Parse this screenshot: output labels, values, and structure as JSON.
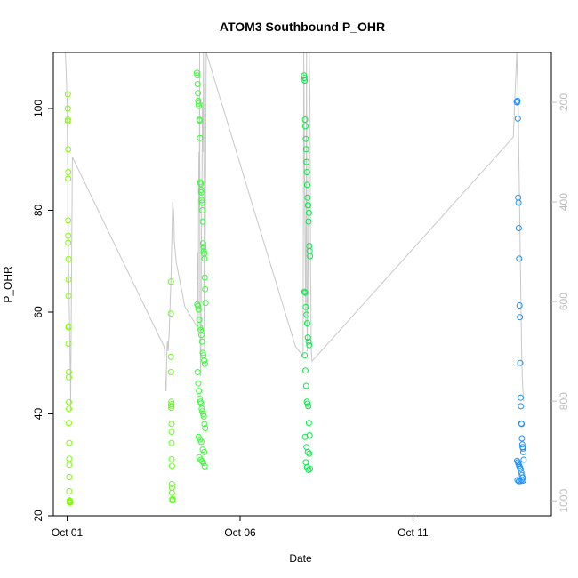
{
  "chart_data": {
    "type": "scatter",
    "title": "ATOM3 Southbound P_OHR",
    "xlabel": "Date",
    "ylabel": "P_OHR",
    "x_ticks": [
      "Oct 01",
      "Oct 06",
      "Oct 11"
    ],
    "x_tick_values": [
      1,
      6,
      11
    ],
    "xlim": [
      0.6,
      15.0
    ],
    "y_ticks": [
      20,
      40,
      60,
      80,
      100
    ],
    "ylim": [
      20,
      111
    ],
    "y2_ticks": [
      200,
      400,
      600,
      800,
      1000
    ],
    "y2lim": [
      1030,
      100
    ],
    "y2_reversed": true,
    "grid": false,
    "colors": {
      "axis": "#000000",
      "secondary_axis": "#bdbdbd",
      "secondary_line": "#c8c8c8",
      "series_ramp": [
        "#7fff00",
        "#66ff22",
        "#33ff33",
        "#00ee44",
        "#00e676",
        "#1e90ff"
      ]
    },
    "series": [
      {
        "color": "#7fff00",
        "x": [
          1.02,
          1.02,
          1.02,
          1.02,
          1.03,
          1.03,
          1.03,
          1.03,
          1.03,
          1.03,
          1.04,
          1.04,
          1.04,
          1.04,
          1.04,
          1.04,
          1.05,
          1.05,
          1.05,
          1.05,
          1.05,
          1.06,
          1.06,
          1.06,
          1.06,
          1.06,
          1.07,
          1.07,
          1.08,
          1.08,
          1.08,
          1.08,
          1.09,
          1.09
        ],
        "y": [
          102.8,
          100.0,
          97.8,
          97.5,
          92.0,
          87.5,
          86.2,
          78.0,
          75.0,
          73.6,
          70.4,
          66.4,
          63.2,
          57.2,
          57.0,
          53.8,
          48.2,
          47.2,
          42.3,
          41.0,
          38.2,
          34.3,
          31.2,
          30.0,
          27.6,
          24.8,
          23.0,
          22.6,
          22.6,
          22.9,
          22.7,
          22.8,
          22.6,
          22.7
        ]
      },
      {
        "color": "#66ff22",
        "x": [
          4.0,
          4.0,
          4.0,
          4.0,
          4.01,
          4.01,
          4.01,
          4.01,
          4.02,
          4.02,
          4.02,
          4.02,
          4.03,
          4.03,
          4.03,
          4.03,
          4.04,
          4.04,
          4.04,
          4.04,
          4.05,
          4.05,
          4.05
        ],
        "y": [
          66.0,
          59.7,
          51.2,
          48.2,
          42.4,
          41.9,
          41.6,
          41.2,
          38.0,
          36.5,
          34.3,
          31.1,
          29.8,
          26.2,
          25.5,
          24.5,
          23.2,
          23.0,
          23.2,
          23.0,
          23.3,
          23.1,
          23.2
        ]
      },
      {
        "color": "#33ff33",
        "x": [
          4.75,
          4.76,
          4.77,
          4.78,
          4.79,
          4.8,
          4.81,
          4.82,
          4.83,
          4.84,
          4.85,
          4.86,
          4.87,
          4.88,
          4.89,
          4.9,
          4.91,
          4.92,
          4.93,
          4.94,
          4.95,
          4.96,
          4.97,
          4.98,
          4.99,
          5.0,
          4.76,
          4.78,
          4.8,
          4.82,
          4.84,
          4.86,
          4.88,
          4.9,
          4.92,
          4.94,
          4.96,
          4.98,
          4.77,
          4.79,
          4.81,
          4.83,
          4.85,
          4.87,
          4.89,
          4.91,
          4.93,
          4.95,
          4.97,
          4.99,
          4.8,
          4.84,
          4.88,
          4.92,
          4.96,
          4.82,
          4.86,
          4.9,
          4.94,
          4.98
        ],
        "y": [
          107.0,
          106.5,
          104.8,
          103.0,
          101.5,
          101.0,
          100.5,
          97.8,
          97.6,
          94.2,
          85.5,
          85.2,
          84.0,
          83.5,
          82.0,
          81.5,
          80.0,
          77.8,
          73.5,
          72.8,
          72.0,
          71.5,
          70.5,
          66.8,
          64.5,
          61.8,
          61.5,
          61.2,
          60.5,
          58.5,
          57.0,
          56.5,
          55.5,
          54.2,
          52.0,
          51.5,
          50.5,
          49.8,
          48.2,
          46.0,
          44.5,
          43.0,
          42.4,
          42.0,
          41.0,
          40.5,
          40.0,
          39.5,
          38.0,
          37.2,
          35.5,
          35.0,
          34.5,
          33.0,
          32.5,
          31.5,
          31.0,
          30.7,
          30.4,
          29.7
        ]
      },
      {
        "color": "#00ee44",
        "x": [
          7.85,
          7.86,
          7.87,
          7.88,
          7.89,
          7.9,
          7.91,
          7.92,
          7.93,
          7.94,
          7.95,
          7.96,
          7.97,
          7.98,
          7.99,
          8.0,
          8.01,
          8.02,
          7.86,
          7.88,
          7.9,
          7.92,
          7.94,
          7.96,
          7.98,
          8.0,
          7.87,
          7.89,
          7.91,
          7.93,
          7.95,
          7.97,
          7.99,
          8.01,
          7.88,
          7.92,
          7.96,
          8.0,
          7.9,
          7.94,
          7.98,
          8.02
        ],
        "y": [
          106.5,
          106.0,
          105.5,
          97.8,
          96.5,
          94.0,
          92.0,
          89.5,
          87.5,
          85.0,
          82.5,
          81.0,
          81.0,
          77.8,
          79.5,
          73.0,
          72.0,
          71.0,
          64.0,
          63.8,
          61.0,
          59.5,
          57.8,
          55.0,
          54.2,
          53.5,
          51.5,
          48.5,
          45.5,
          42.4,
          42.0,
          41.5,
          38.2,
          35.8,
          35.5,
          33.5,
          32.5,
          32.2,
          30.5,
          29.5,
          29.0,
          29.2
        ]
      },
      {
        "color": "#1e90ff",
        "x": [
          14.0,
          14.01,
          14.02,
          14.03,
          14.04,
          14.05,
          14.06,
          14.07,
          14.08,
          14.09,
          14.1,
          14.11,
          14.12,
          14.13,
          14.14,
          14.15,
          14.16,
          14.17,
          14.18,
          14.19,
          14.2,
          14.01,
          14.03,
          14.05,
          14.07,
          14.09,
          14.11,
          14.13,
          14.15,
          14.17,
          14.02,
          14.06,
          14.1,
          14.14,
          14.18
        ],
        "y": [
          101.3,
          101.2,
          101.5,
          98.0,
          82.5,
          81.5,
          76.5,
          70.5,
          61.3,
          59.0,
          50.0,
          43.2,
          41.5,
          38.1,
          38.0,
          35.2,
          34.0,
          33.5,
          33.2,
          32.5,
          31.0,
          30.8,
          30.5,
          30.2,
          29.8,
          29.5,
          29.2,
          28.5,
          28.0,
          27.5,
          27.0,
          26.8,
          26.8,
          27.0,
          26.9
        ]
      }
    ],
    "secondary_line": {
      "axis": "right",
      "x": [
        0.95,
        0.96,
        0.97,
        1.0,
        1.0,
        1.02,
        1.02,
        1.04,
        1.06,
        1.08,
        1.1,
        1.1,
        1.15,
        3.8,
        3.82,
        3.84,
        3.86,
        3.88,
        3.9,
        3.92,
        3.95,
        4.0,
        4.05,
        4.08,
        4.1,
        4.15,
        4.4,
        4.75,
        4.76,
        4.77,
        4.78,
        4.79,
        4.8,
        4.81,
        4.82,
        4.83,
        4.84,
        4.85,
        4.86,
        4.87,
        4.88,
        4.89,
        4.9,
        4.91,
        4.92,
        4.93,
        4.94,
        4.95,
        4.96,
        4.97,
        4.98,
        4.99,
        5.0,
        5.02,
        7.6,
        7.82,
        7.84,
        7.86,
        7.88,
        7.9,
        7.92,
        7.94,
        7.96,
        7.98,
        8.0,
        8.02,
        8.04,
        8.06,
        8.08,
        13.9,
        14.0,
        14.02,
        14.04,
        14.06,
        14.08,
        14.1,
        14.12,
        14.14,
        14.16,
        14.18,
        14.2
      ],
      "y": [
        100,
        120,
        140,
        200,
        250,
        350,
        420,
        520,
        610,
        700,
        780,
        820,
        310,
        690,
        700,
        770,
        780,
        700,
        680,
        700,
        660,
        560,
        400,
        420,
        480,
        520,
        610,
        650,
        560,
        600,
        500,
        650,
        400,
        300,
        420,
        100,
        600,
        700,
        750,
        650,
        500,
        400,
        350,
        200,
        300,
        250,
        100,
        200,
        650,
        700,
        650,
        500,
        400,
        100,
        690,
        710,
        100,
        300,
        500,
        650,
        100,
        700,
        600,
        400,
        100,
        200,
        550,
        700,
        720,
        270,
        100,
        150,
        200,
        300,
        400,
        500,
        600,
        700,
        750,
        780,
        800
      ]
    }
  }
}
